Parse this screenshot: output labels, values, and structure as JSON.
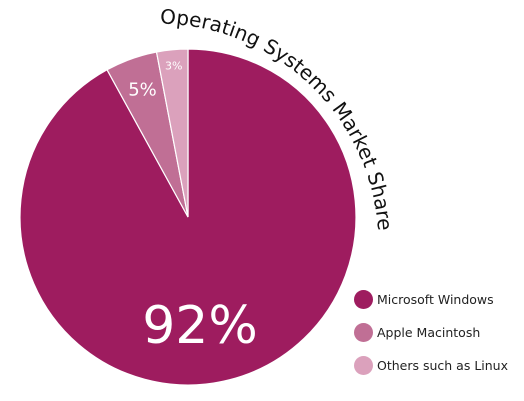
{
  "chart_data": {
    "type": "pie",
    "title": "Operating Systems Market Share",
    "slices": [
      {
        "label": "Microsoft Windows",
        "value": 92,
        "value_label": "92%",
        "color": "#9e1c5f"
      },
      {
        "label": "Apple Macintosh",
        "value": 5,
        "value_label": "5%",
        "color": "#c06f95"
      },
      {
        "label": "Others such as Linux",
        "value": 3,
        "value_label": "3%",
        "color": "#dba1bc"
      }
    ],
    "legend_position": "bottom-right",
    "title_style": "curved along top-right of pie"
  }
}
